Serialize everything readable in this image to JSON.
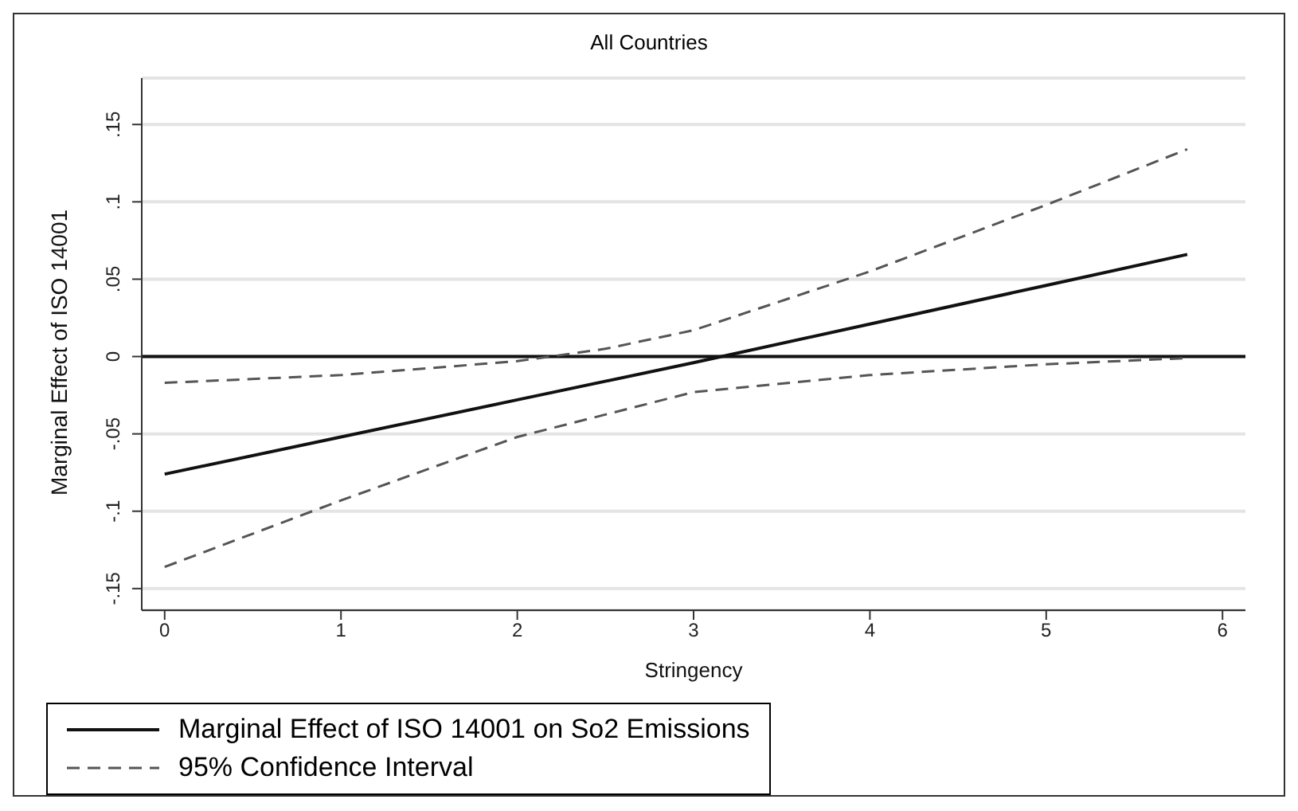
{
  "chart_data": {
    "type": "line",
    "title": "All Countries",
    "xlabel": "Stringency",
    "ylabel": "Marginal Effect of ISO 14001",
    "series": [
      {
        "name": "Marginal Effect of ISO 14001 on So2 Emissions",
        "color": "#111111",
        "line_style": "solid",
        "x": [
          0,
          1,
          2,
          3,
          4,
          5,
          5.8
        ],
        "values": [
          -0.076,
          -0.052,
          -0.028,
          -0.004,
          0.021,
          0.046,
          0.066
        ]
      },
      {
        "name": "95% Confidence Interval",
        "color": "#555555",
        "line_style": "dashed",
        "x": [
          0,
          1,
          2,
          2.5,
          3,
          4,
          5,
          5.8
        ],
        "values": [
          -0.017,
          -0.012,
          -0.003,
          0.005,
          0.017,
          0.055,
          0.098,
          0.134
        ]
      },
      {
        "color": "#555555",
        "line_style": "dashed",
        "x": [
          0,
          1,
          2,
          3,
          4,
          5,
          5.8
        ],
        "values": [
          -0.136,
          -0.093,
          -0.052,
          -0.023,
          -0.012,
          -0.005,
          -0.001
        ]
      }
    ],
    "xlim": [
      -0.13,
      6.13
    ],
    "xticks": [
      0,
      1,
      2,
      3,
      4,
      5,
      6
    ],
    "ylim": [
      -0.164,
      0.18
    ],
    "yticks": [
      {
        "value": -0.15,
        "label": "-.15"
      },
      {
        "value": -0.1,
        "label": "-.1"
      },
      {
        "value": -0.05,
        "label": "-.05"
      },
      0,
      {
        "value": 0.05,
        "label": ".05"
      },
      {
        "value": 0.1,
        "label": ".1"
      },
      {
        "value": 0.15,
        "label": ".15"
      }
    ],
    "ref_lines": [
      {
        "axis": "y",
        "value": 0,
        "color": "#111111"
      }
    ],
    "grid": "y",
    "legend": "bottom",
    "marker": "none"
  }
}
